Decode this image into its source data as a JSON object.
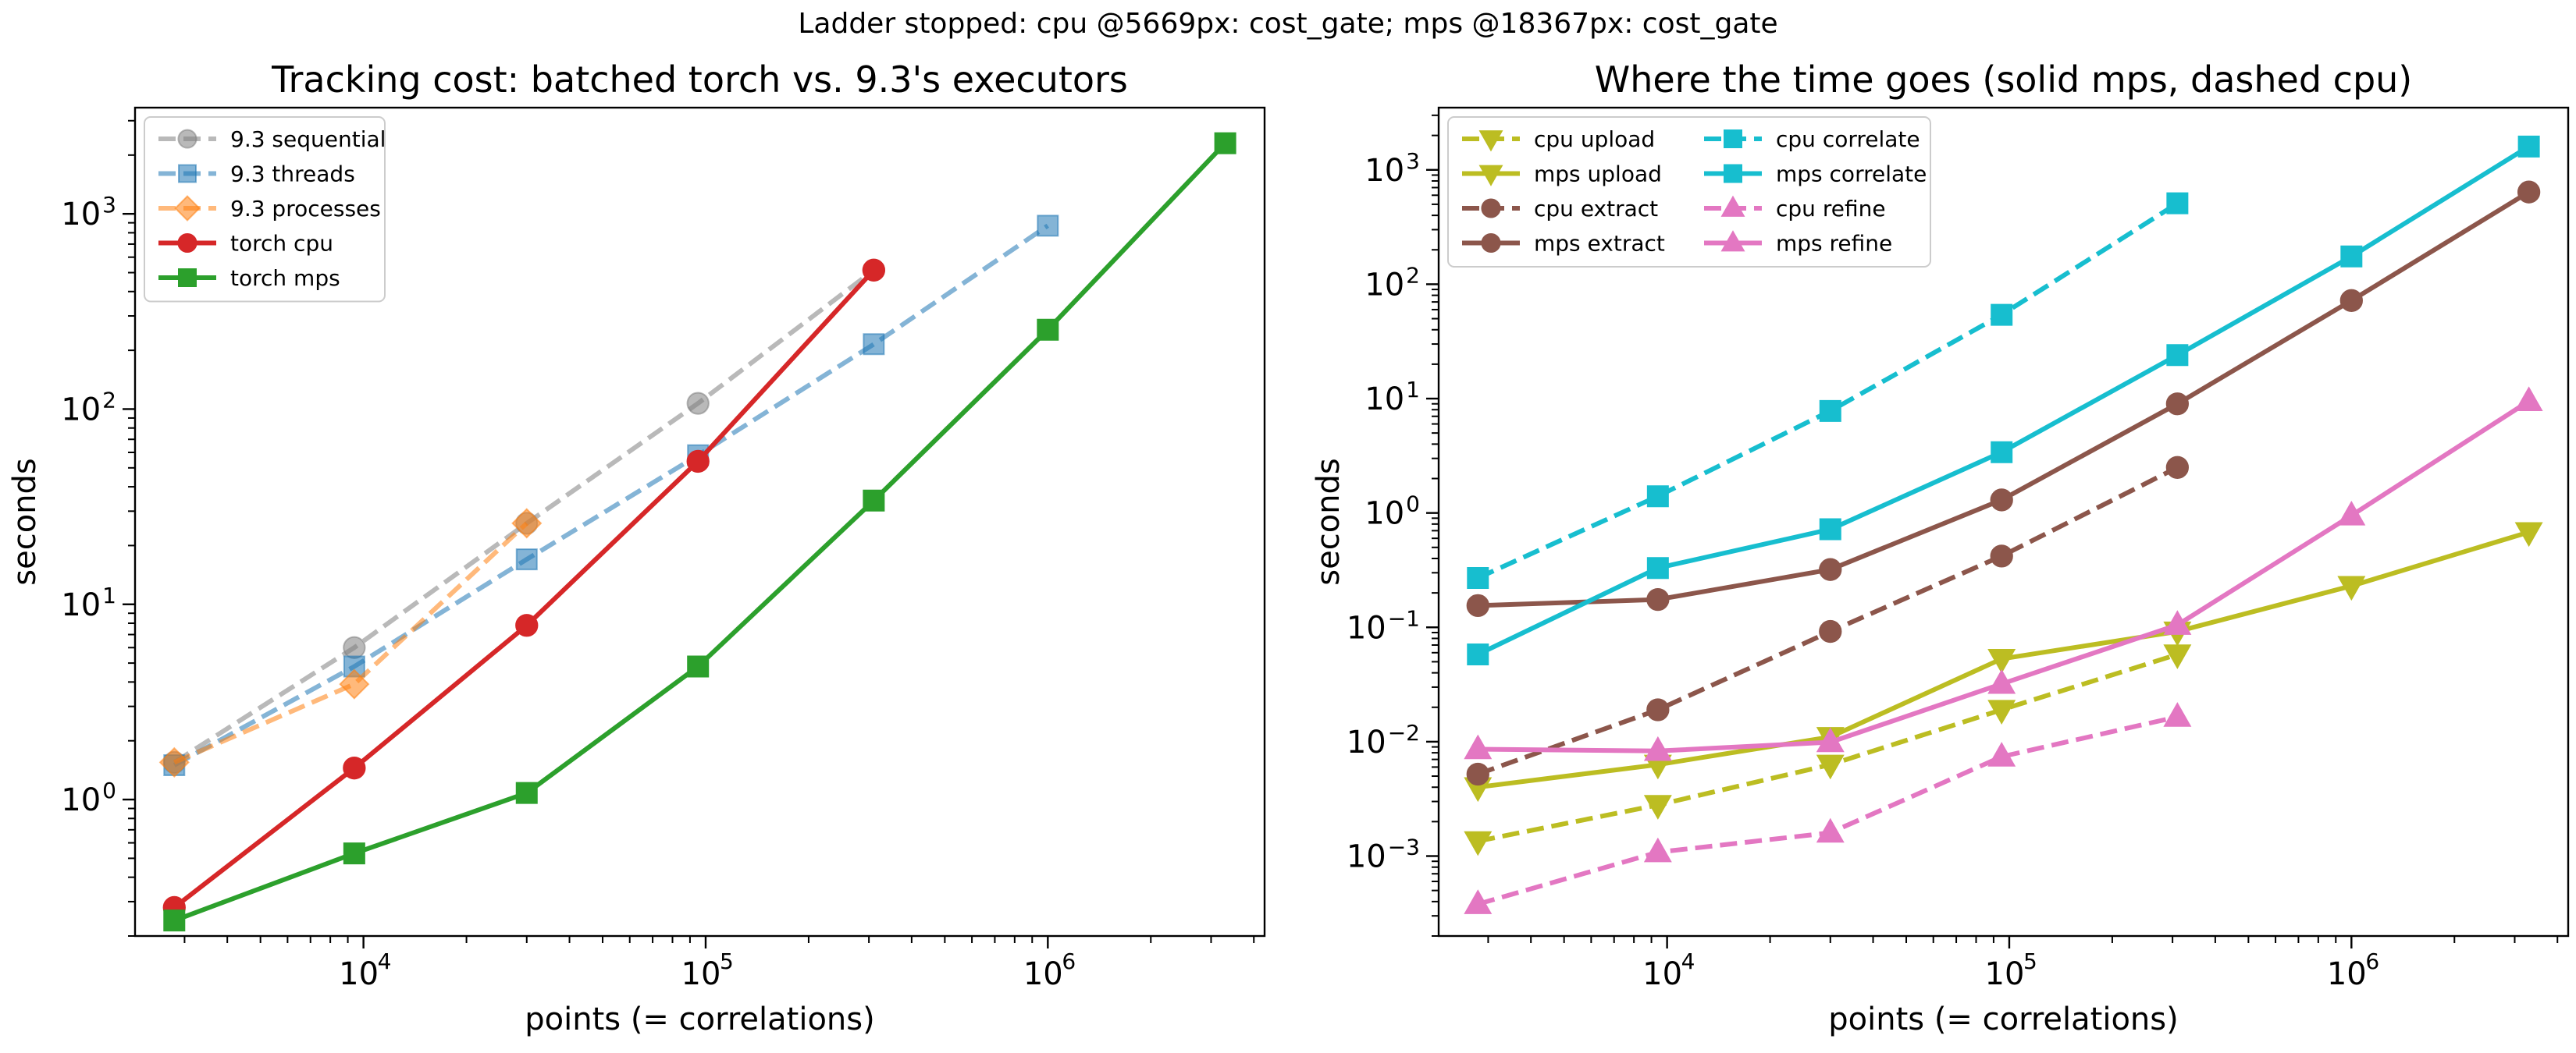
{
  "suptitle": "Ladder stopped: cpu @5669px: cost_gate; mps @18367px: cost_gate",
  "chart_data": [
    {
      "type": "line",
      "title": "Tracking cost: batched torch vs. 9.3's executors",
      "xlabel": "points (= correlations)",
      "ylabel": "seconds",
      "xscale": "log",
      "yscale": "log",
      "xlim": [
        2150,
        4300000
      ],
      "ylim": [
        0.2,
        3500
      ],
      "xticks": [
        {
          "base": "10",
          "exp": "4",
          "value": 10000
        },
        {
          "base": "10",
          "exp": "5",
          "value": 100000
        },
        {
          "base": "10",
          "exp": "6",
          "value": 1000000
        }
      ],
      "yticks": [
        {
          "base": "10",
          "exp": "0",
          "value": 1
        },
        {
          "base": "10",
          "exp": "1",
          "value": 10
        },
        {
          "base": "10",
          "exp": "2",
          "value": 100
        },
        {
          "base": "10",
          "exp": "3",
          "value": 1000
        }
      ],
      "grid": false,
      "legend": {
        "position": "top-left",
        "columns": 1
      },
      "series": [
        {
          "name": "9.3 sequential",
          "color": "#7f7f7f",
          "alpha": 0.55,
          "dash": true,
          "marker": "circle",
          "x": [
            2800,
            9400,
            30000,
            95000,
            310000
          ],
          "y": [
            1.55,
            6.0,
            26,
            107,
            515
          ]
        },
        {
          "name": "9.3 threads",
          "color": "#1f77b4",
          "alpha": 0.55,
          "dash": true,
          "marker": "square",
          "x": [
            2800,
            9400,
            30000,
            95000,
            310000,
            1000000
          ],
          "y": [
            1.5,
            4.8,
            17,
            58,
            215,
            870
          ]
        },
        {
          "name": "9.3 processes",
          "color": "#ff7f0e",
          "alpha": 0.55,
          "dash": true,
          "marker": "diamond",
          "x": [
            2800,
            9400,
            30000
          ],
          "y": [
            1.55,
            3.9,
            26
          ]
        },
        {
          "name": "torch cpu",
          "color": "#d62728",
          "alpha": 1,
          "dash": false,
          "marker": "circle",
          "x": [
            2800,
            9400,
            30000,
            95000,
            310000
          ],
          "y": [
            0.28,
            1.45,
            7.8,
            54,
            515
          ]
        },
        {
          "name": "torch mps",
          "color": "#2ca02c",
          "alpha": 1,
          "dash": false,
          "marker": "square",
          "x": [
            2800,
            9400,
            30000,
            95000,
            310000,
            1000000,
            3300000
          ],
          "y": [
            0.24,
            0.53,
            1.08,
            4.8,
            34,
            255,
            2300
          ]
        }
      ]
    },
    {
      "type": "line",
      "title": "Where the time goes (solid mps, dashed cpu)",
      "xlabel": "points (= correlations)",
      "ylabel": "seconds",
      "xscale": "log",
      "yscale": "log",
      "xlim": [
        2150,
        4300000
      ],
      "ylim": [
        0.0002,
        3500
      ],
      "xticks": [
        {
          "base": "10",
          "exp": "4",
          "value": 10000
        },
        {
          "base": "10",
          "exp": "5",
          "value": 100000
        },
        {
          "base": "10",
          "exp": "6",
          "value": 1000000
        }
      ],
      "yticks": [
        {
          "base": "10",
          "exp": "−3",
          "value": 0.001
        },
        {
          "base": "10",
          "exp": "−2",
          "value": 0.01
        },
        {
          "base": "10",
          "exp": "−1",
          "value": 0.1
        },
        {
          "base": "10",
          "exp": "0",
          "value": 1
        },
        {
          "base": "10",
          "exp": "1",
          "value": 10
        },
        {
          "base": "10",
          "exp": "2",
          "value": 100
        },
        {
          "base": "10",
          "exp": "3",
          "value": 1000
        }
      ],
      "grid": false,
      "legend": {
        "position": "top-left",
        "columns": 2
      },
      "series": [
        {
          "name": "cpu upload",
          "color": "#bcbd22",
          "alpha": 1,
          "dash": true,
          "marker": "triangle-down",
          "x": [
            2800,
            9400,
            30000,
            95000,
            310000
          ],
          "y": [
            0.00135,
            0.0028,
            0.0063,
            0.019,
            0.058
          ]
        },
        {
          "name": "mps upload",
          "color": "#bcbd22",
          "alpha": 1,
          "dash": false,
          "marker": "triangle-down",
          "x": [
            2800,
            9400,
            30000,
            95000,
            310000,
            1000000,
            3300000
          ],
          "y": [
            0.004,
            0.0063,
            0.011,
            0.053,
            0.092,
            0.23,
            0.68
          ]
        },
        {
          "name": "cpu extract",
          "color": "#8c564b",
          "alpha": 1,
          "dash": true,
          "marker": "circle",
          "x": [
            2800,
            9400,
            30000,
            95000,
            310000
          ],
          "y": [
            0.0052,
            0.019,
            0.092,
            0.42,
            2.5
          ]
        },
        {
          "name": "mps extract",
          "color": "#8c564b",
          "alpha": 1,
          "dash": false,
          "marker": "circle",
          "x": [
            2800,
            9400,
            30000,
            95000,
            310000,
            1000000,
            3300000
          ],
          "y": [
            0.155,
            0.175,
            0.32,
            1.3,
            9.0,
            72,
            640
          ]
        },
        {
          "name": "cpu correlate",
          "color": "#17becf",
          "alpha": 1,
          "dash": true,
          "marker": "square",
          "x": [
            2800,
            9400,
            30000,
            95000,
            310000
          ],
          "y": [
            0.27,
            1.4,
            7.8,
            54,
            510
          ]
        },
        {
          "name": "mps correlate",
          "color": "#17becf",
          "alpha": 1,
          "dash": false,
          "marker": "square",
          "x": [
            2800,
            9400,
            30000,
            95000,
            310000,
            1000000,
            3300000
          ],
          "y": [
            0.058,
            0.33,
            0.72,
            3.4,
            24,
            175,
            1600
          ]
        },
        {
          "name": "cpu refine",
          "color": "#e377c2",
          "alpha": 1,
          "dash": true,
          "marker": "triangle-up",
          "x": [
            2800,
            9400,
            30000,
            95000,
            310000
          ],
          "y": [
            0.00038,
            0.00108,
            0.0016,
            0.0074,
            0.0165
          ]
        },
        {
          "name": "mps refine",
          "color": "#e377c2",
          "alpha": 1,
          "dash": false,
          "marker": "triangle-up",
          "x": [
            2800,
            9400,
            30000,
            95000,
            310000,
            1000000,
            3300000
          ],
          "y": [
            0.0086,
            0.0083,
            0.0099,
            0.032,
            0.105,
            0.95,
            9.5
          ]
        }
      ]
    }
  ]
}
